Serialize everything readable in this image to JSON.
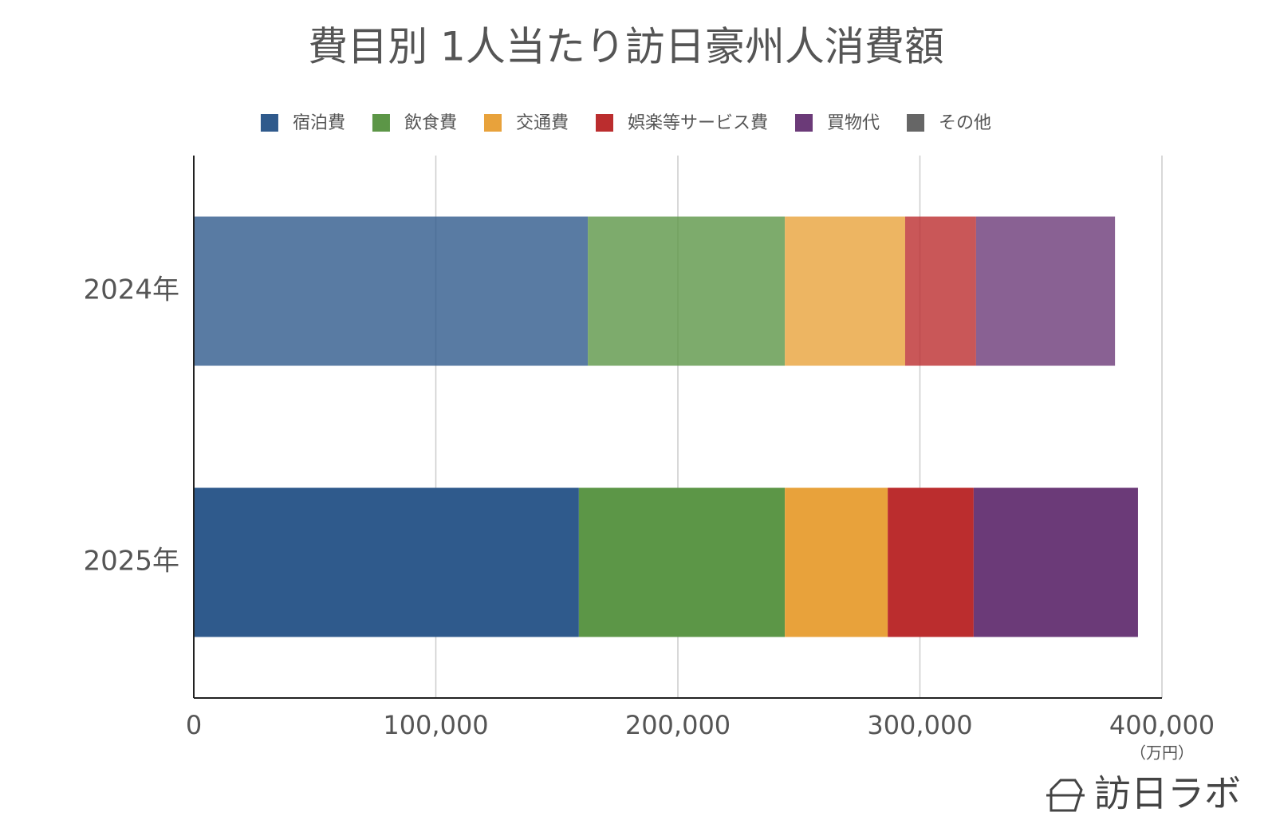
{
  "chart_data": {
    "type": "bar",
    "orientation": "horizontal",
    "stacked": true,
    "title": "費目別 1人当たり訪日豪州人消費額",
    "categories": [
      "2024年",
      "2025年"
    ],
    "category_opacity": [
      0.8,
      1
    ],
    "series": [
      {
        "name": "宿泊費",
        "color": "#2f5a8c",
        "values": [
          162800,
          159100
        ]
      },
      {
        "name": "飲食費",
        "color": "#5c9647",
        "values": [
          81400,
          85100
        ]
      },
      {
        "name": "交通費",
        "color": "#e8a23b",
        "values": [
          49700,
          42500
        ]
      },
      {
        "name": "娯楽等サービス費",
        "color": "#bb2d2e",
        "values": [
          29300,
          35500
        ]
      },
      {
        "name": "買物代",
        "color": "#6b3a78",
        "values": [
          57400,
          67900
        ]
      },
      {
        "name": "その他",
        "color": "#666666",
        "values": [
          0,
          0
        ]
      }
    ],
    "xlim": [
      0,
      400000
    ],
    "xticks": [
      0,
      {
        "value": 100000,
        "label": "100,000"
      },
      {
        "value": 200000,
        "label": "200,000"
      },
      {
        "value": 300000,
        "label": "300,000"
      },
      {
        "value": 400000,
        "label": "400,000"
      }
    ],
    "x_unit": "（万円）",
    "grid": true,
    "legend": "top"
  },
  "logo": "訪日ラボ"
}
